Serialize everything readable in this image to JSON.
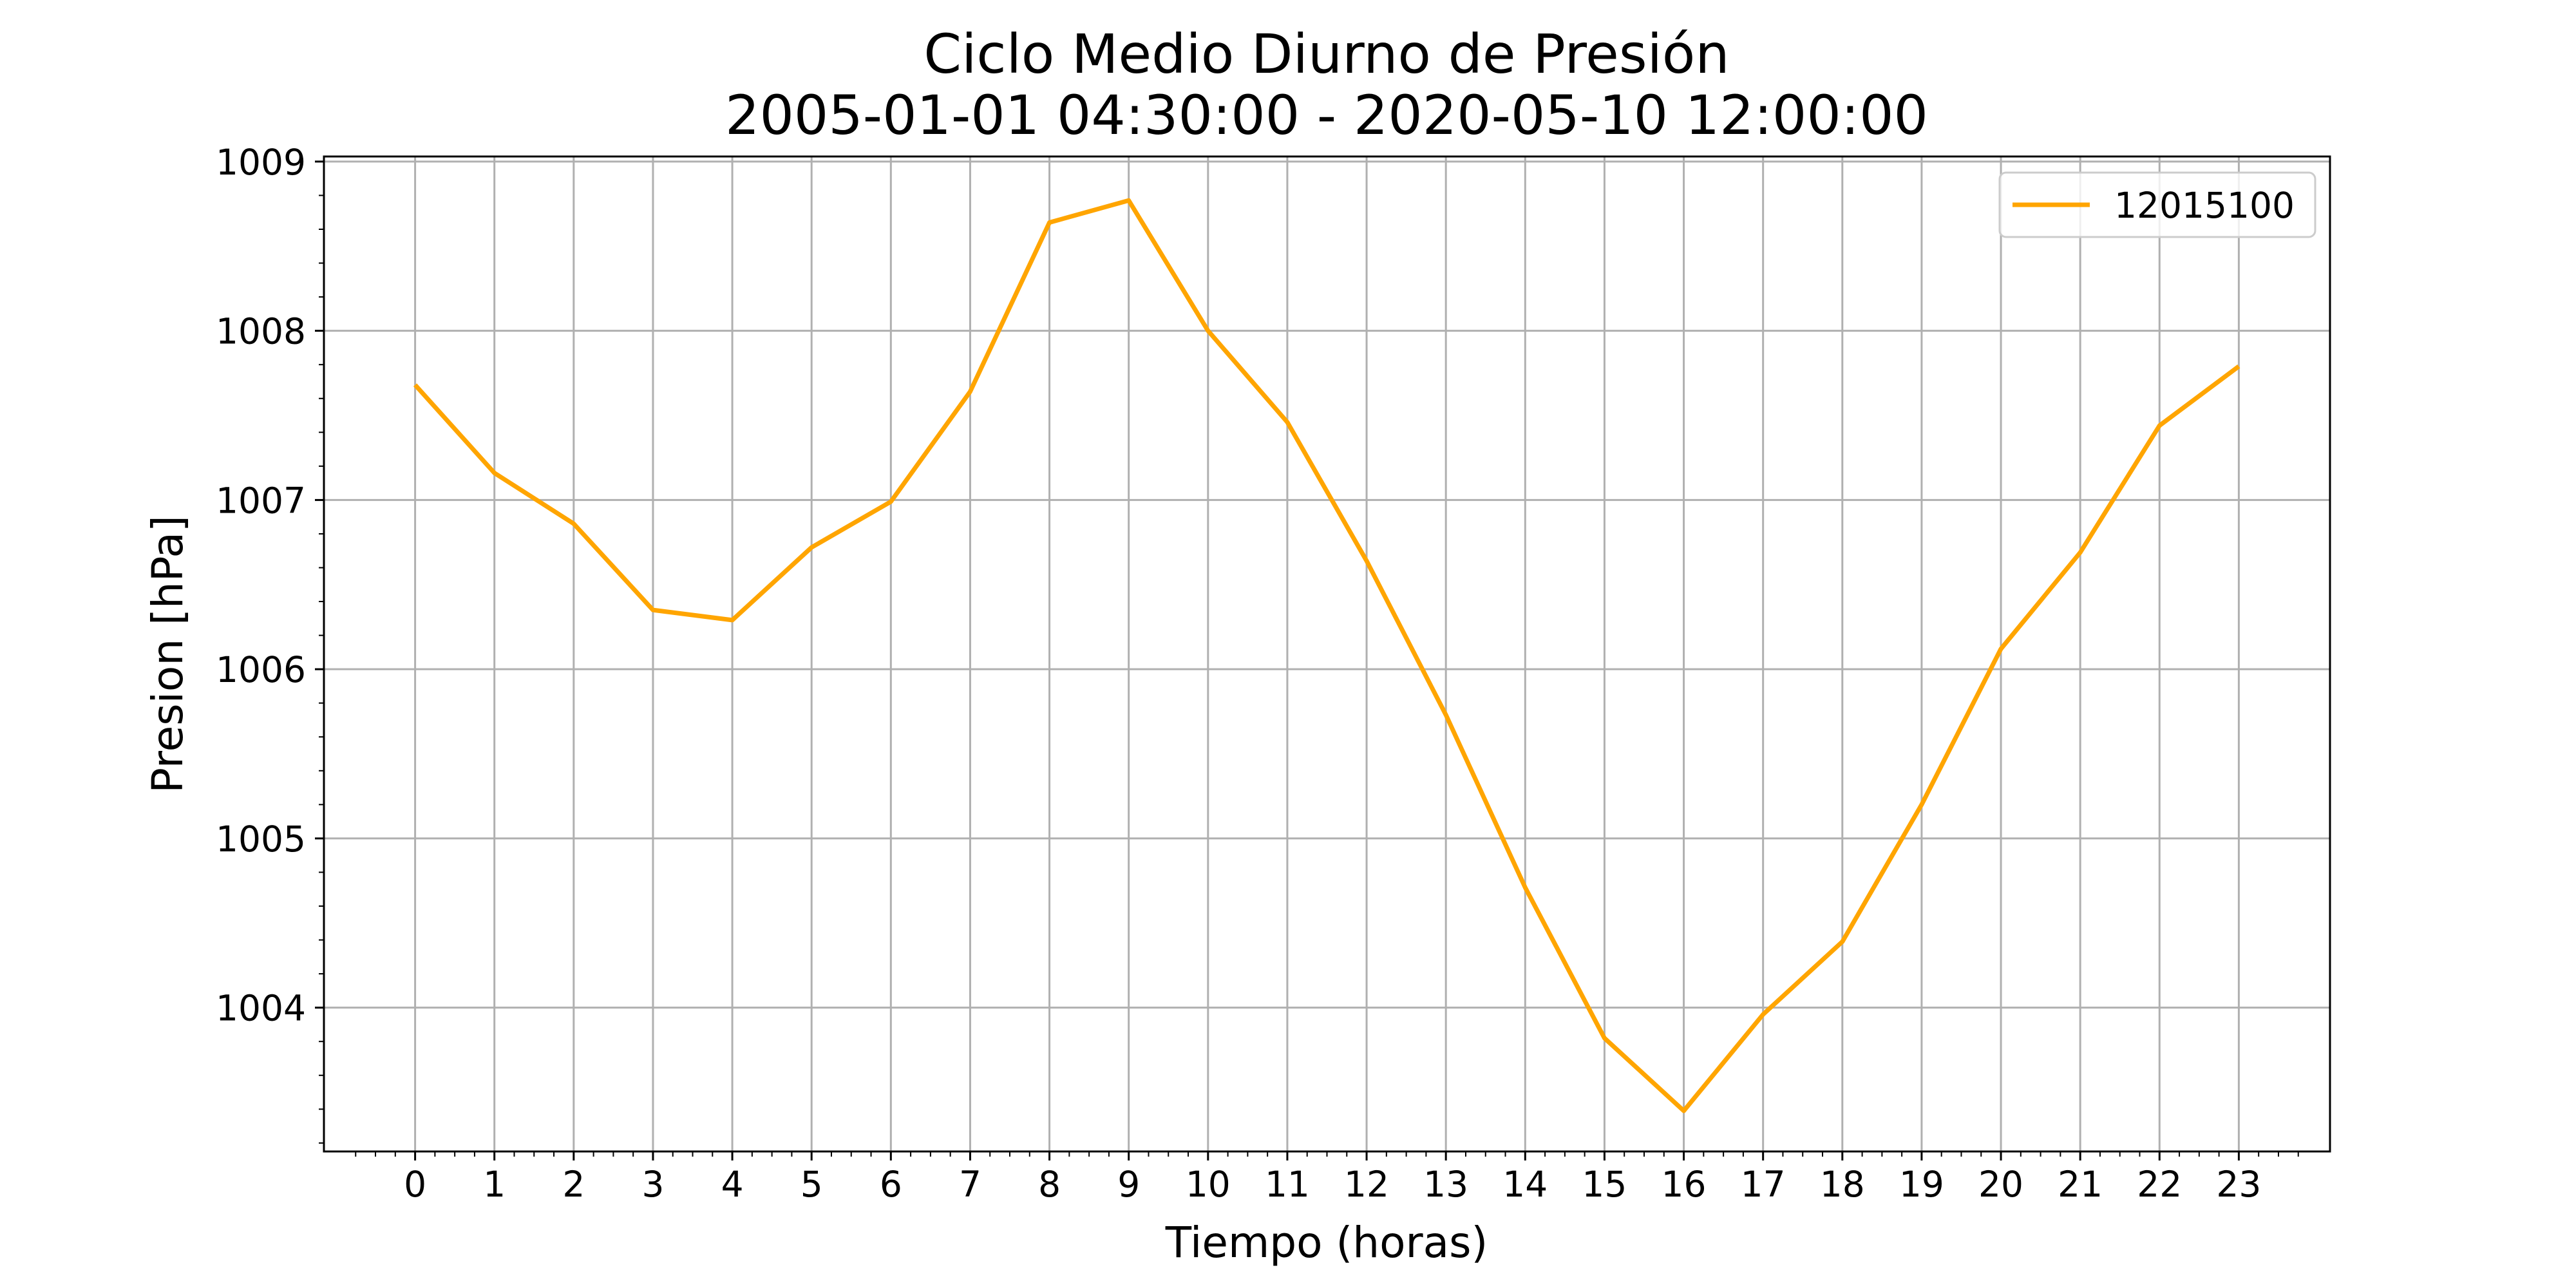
{
  "chart_data": {
    "type": "line",
    "title": "Ciclo Medio Diurno de Presión",
    "subtitle": "2005-01-01 04:30:00 - 2020-05-10 12:00:00",
    "xlabel": "Tiempo (horas)",
    "ylabel": "Presion [hPa]",
    "x": [
      0,
      1,
      2,
      3,
      4,
      5,
      6,
      7,
      8,
      9,
      10,
      11,
      12,
      13,
      14,
      15,
      16,
      17,
      18,
      19,
      20,
      21,
      22,
      23
    ],
    "xlim": [
      -1.15,
      24.15
    ],
    "ylim": [
      1003.15,
      1009.03
    ],
    "x_ticks": [
      "0",
      "1",
      "2",
      "3",
      "4",
      "5",
      "6",
      "7",
      "8",
      "9",
      "10",
      "11",
      "12",
      "13",
      "14",
      "15",
      "16",
      "17",
      "18",
      "19",
      "20",
      "21",
      "22",
      "23"
    ],
    "y_ticks": [
      "1004",
      "1005",
      "1006",
      "1007",
      "1008",
      "1009"
    ],
    "grid": true,
    "legend_position": "top-right",
    "series": [
      {
        "name": "12015100",
        "color": "#FFA500",
        "values": [
          1007.68,
          1007.16,
          1006.86,
          1006.35,
          1006.29,
          1006.72,
          1006.99,
          1007.64,
          1008.64,
          1008.77,
          1008.0,
          1007.46,
          1006.64,
          1005.73,
          1004.71,
          1003.82,
          1003.39,
          1003.96,
          1004.39,
          1005.2,
          1006.12,
          1006.69,
          1007.44,
          1007.79
        ]
      }
    ]
  }
}
